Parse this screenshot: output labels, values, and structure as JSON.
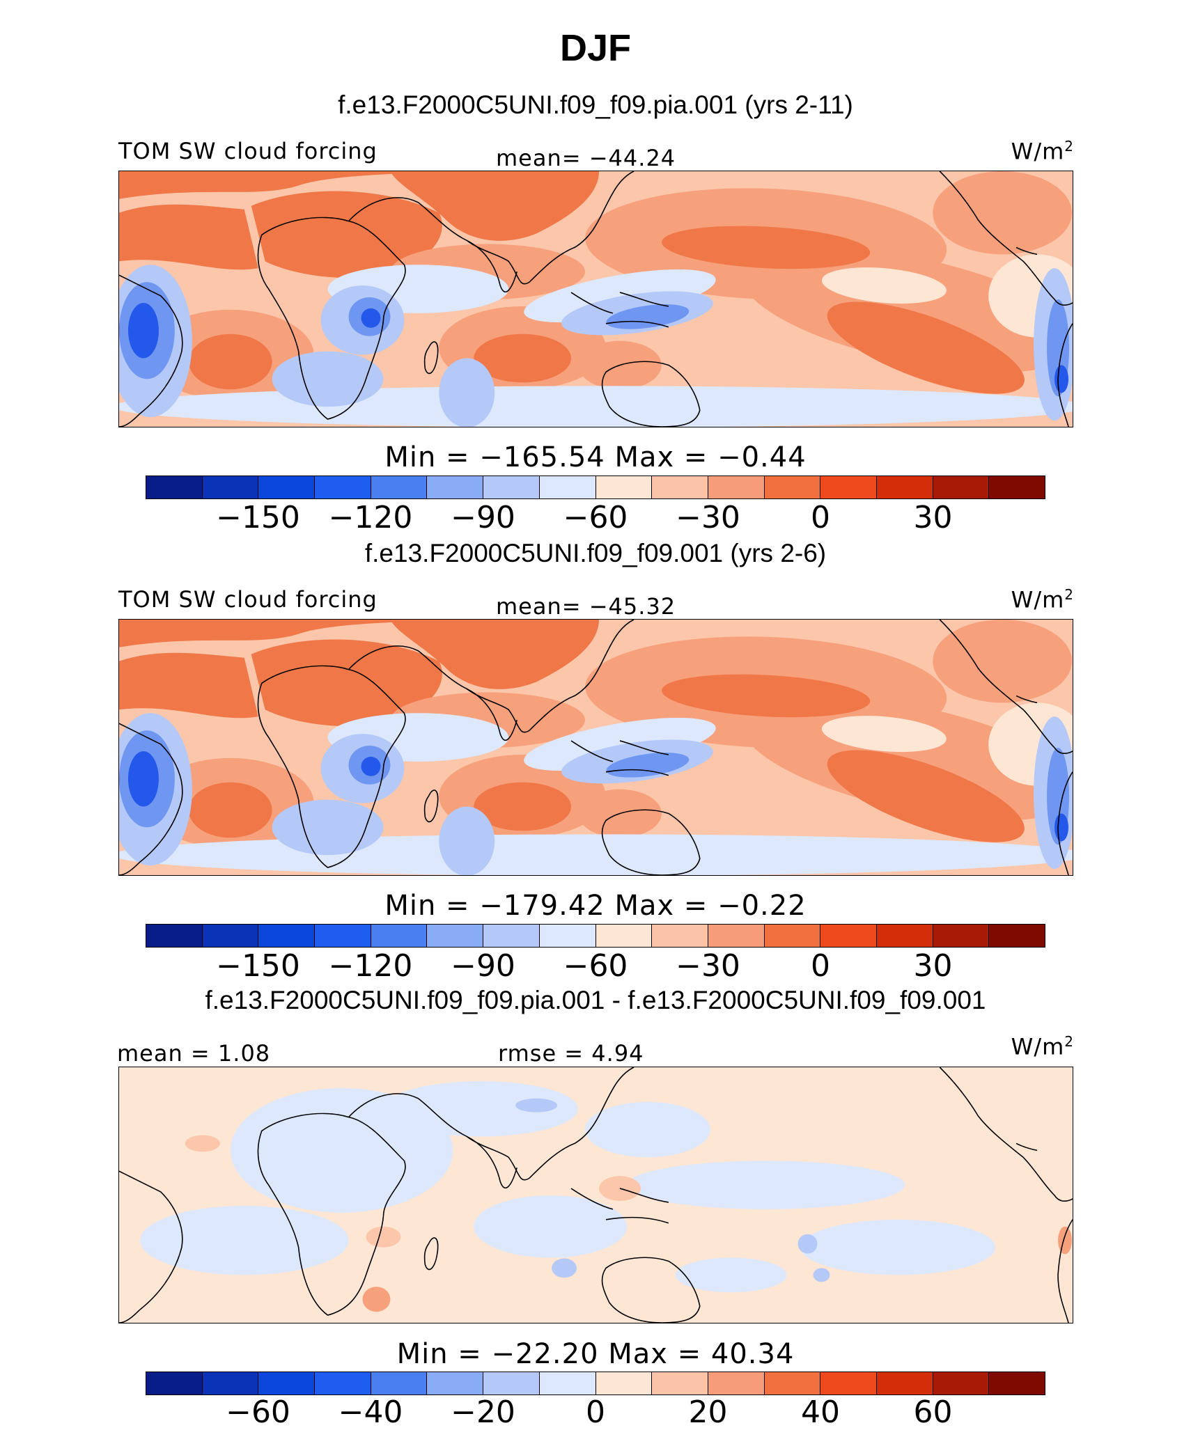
{
  "figure": {
    "title": "DJF"
  },
  "panels": [
    {
      "case_title": "f.e13.F2000C5UNI.f09_f09.pia.001 (yrs 2-11)",
      "left_label": "TOM SW cloud forcing",
      "center_label": "mean= −44.24",
      "units": "W/m",
      "units_sup": "2",
      "min_max": "Min = −165.54 Max = −0.44",
      "colorbar_ticks": [
        "−150",
        "−120",
        "−90",
        "−60",
        "−30",
        "0",
        "30"
      ]
    },
    {
      "case_title": "f.e13.F2000C5UNI.f09_f09.001 (yrs 2-6)",
      "left_label": "TOM SW cloud forcing",
      "center_label": "mean= −45.32",
      "units": "W/m",
      "units_sup": "2",
      "min_max": "Min = −179.42 Max = −0.22",
      "colorbar_ticks": [
        "−150",
        "−120",
        "−90",
        "−60",
        "−30",
        "0",
        "30"
      ]
    },
    {
      "case_title": "f.e13.F2000C5UNI.f09_f09.pia.001 - f.e13.F2000C5UNI.f09_f09.001",
      "left_label": "mean =    1.08",
      "center_label": "rmse =    4.94",
      "units": "W/m",
      "units_sup": "2",
      "min_max": "Min = −22.20 Max =   40.34",
      "colorbar_ticks": [
        "−60",
        "−40",
        "−20",
        "0",
        "20",
        "40",
        "60"
      ]
    }
  ],
  "colorbar_colors": [
    "#081d88",
    "#0a33b8",
    "#0b46dd",
    "#1f5df0",
    "#4a7ff2",
    "#8aabf5",
    "#b4c9f8",
    "#dde8fc",
    "#fde6d4",
    "#fbc4a8",
    "#f69c78",
    "#f2703f",
    "#ef4a1e",
    "#d42d0a",
    "#a81a05",
    "#7e0a02"
  ],
  "map_colors": {
    "strong_red": "#f07848",
    "light_red": "#f7a07c",
    "pale_red": "#fbc6aa",
    "peach": "#fde6d4",
    "pale_blue": "#dde8fc",
    "light_blue": "#b4c9f8",
    "mid_blue": "#6f97f2",
    "strong_blue": "#2458ea",
    "deep_blue": "#0d3ad0"
  }
}
